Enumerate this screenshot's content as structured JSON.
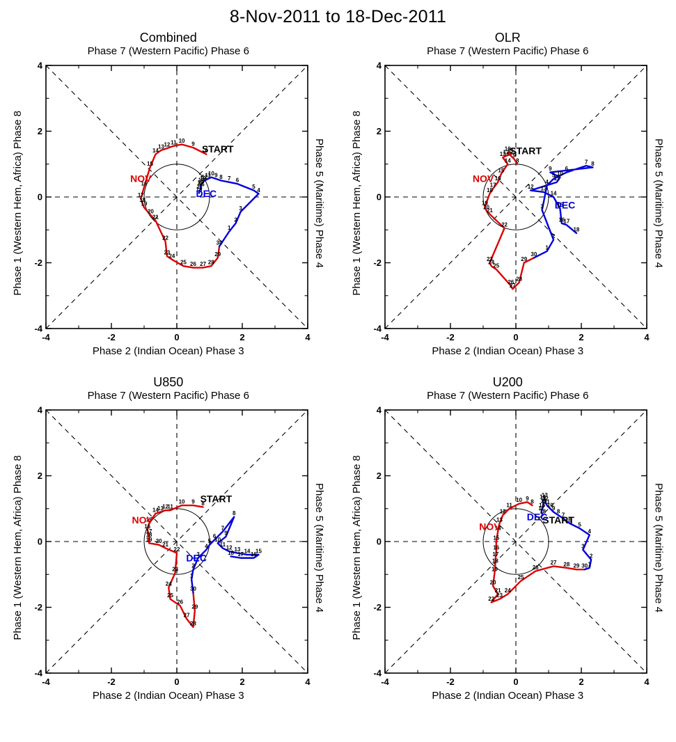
{
  "page_title": "8-Nov-2011 to 18-Dec-2011",
  "axis": {
    "min": -4,
    "max": 4,
    "ticks": [
      -4,
      -2,
      0,
      2,
      4
    ],
    "minor_ticks": [
      -3,
      -1,
      1,
      3
    ],
    "top_label": "Phase 7 (Western Pacific) Phase 6",
    "bottom_label": "Phase 2 (Indian Ocean) Phase 3",
    "left_label": "Phase 1 (Western Hem, Africa) Phase 8",
    "right_label": "Phase 5 (Maritime) Phase 4",
    "unit_circle_radius": 1
  },
  "colors": {
    "nov_line": "#dd0000",
    "dec_line": "#0000dd",
    "day_labels": "#000000",
    "frame": "#000000"
  },
  "chart_data": [
    {
      "type": "line",
      "title": "Combined",
      "xlim": [
        -4,
        4
      ],
      "ylim": [
        -4,
        4
      ],
      "series": [
        {
          "name": "NOV",
          "color": "#dd0000",
          "points": [
            [
              8,
              0.9,
              1.3
            ],
            [
              9,
              0.5,
              1.5
            ],
            [
              10,
              0.15,
              1.6
            ],
            [
              11,
              -0.1,
              1.55
            ],
            [
              12,
              -0.3,
              1.48
            ],
            [
              13,
              -0.48,
              1.42
            ],
            [
              14,
              -0.65,
              1.3
            ],
            [
              15,
              -0.82,
              0.9
            ],
            [
              16,
              -1.0,
              0.3
            ],
            [
              17,
              -1.1,
              -0.05
            ],
            [
              18,
              -1.05,
              -0.2
            ],
            [
              19,
              -1.0,
              -0.32
            ],
            [
              20,
              -0.8,
              -0.55
            ],
            [
              21,
              -0.65,
              -0.72
            ],
            [
              22,
              -0.35,
              -1.35
            ],
            [
              23,
              -0.3,
              -1.8
            ],
            [
              24,
              -0.15,
              -1.9
            ],
            [
              25,
              0.2,
              -2.1
            ],
            [
              26,
              0.5,
              -2.15
            ],
            [
              27,
              0.8,
              -2.15
            ],
            [
              28,
              1.05,
              -2.1
            ],
            [
              29,
              1.25,
              -1.85
            ],
            [
              30,
              1.3,
              -1.5
            ]
          ]
        },
        {
          "name": "DEC",
          "color": "#0000dd",
          "connect_from_previous": true,
          "points": [
            [
              1,
              1.6,
              -1.05
            ],
            [
              2,
              1.8,
              -0.8
            ],
            [
              3,
              1.95,
              -0.45
            ],
            [
              4,
              2.5,
              0.1
            ],
            [
              5,
              2.35,
              0.2
            ],
            [
              6,
              1.85,
              0.4
            ],
            [
              7,
              1.6,
              0.45
            ],
            [
              8,
              1.35,
              0.5
            ],
            [
              9,
              1.2,
              0.55
            ],
            [
              10,
              1.05,
              0.6
            ],
            [
              11,
              0.95,
              0.55
            ],
            [
              12,
              0.85,
              0.5
            ],
            [
              13,
              0.8,
              0.45
            ],
            [
              14,
              0.75,
              0.4
            ],
            [
              15,
              0.72,
              0.33
            ],
            [
              16,
              0.75,
              0.27
            ],
            [
              17,
              0.7,
              0.2
            ],
            [
              18,
              0.68,
              0.12
            ]
          ]
        }
      ],
      "annotations": [
        {
          "text": "START",
          "x": 1.25,
          "y": 1.35,
          "color": "#000000"
        },
        {
          "text": "NOV",
          "x": -1.1,
          "y": 0.45,
          "color": "#dd0000"
        },
        {
          "text": "DEC",
          "x": 0.9,
          "y": 0.0,
          "color": "#0000dd"
        }
      ]
    },
    {
      "type": "line",
      "title": "OLR",
      "xlim": [
        -4,
        4
      ],
      "ylim": [
        -4,
        4
      ],
      "series": [
        {
          "name": "NOV",
          "color": "#dd0000",
          "points": [
            [
              8,
              0.05,
              1.0
            ],
            [
              9,
              -0.05,
              1.15
            ],
            [
              10,
              -0.25,
              1.35
            ],
            [
              11,
              -0.15,
              1.3
            ],
            [
              12,
              -0.3,
              1.25
            ],
            [
              13,
              -0.4,
              1.2
            ],
            [
              14,
              -0.25,
              1.0
            ],
            [
              15,
              -0.45,
              0.7
            ],
            [
              16,
              -0.55,
              0.45
            ],
            [
              17,
              -0.7,
              0.25
            ],
            [
              18,
              -0.8,
              0.1
            ],
            [
              19,
              -0.95,
              -0.3
            ],
            [
              20,
              -0.9,
              -0.42
            ],
            [
              21,
              -0.8,
              -0.52
            ],
            [
              22,
              -0.35,
              -0.95
            ],
            [
              23,
              -0.8,
              -2.0
            ],
            [
              24,
              -0.75,
              -2.1
            ],
            [
              25,
              -0.6,
              -2.2
            ],
            [
              26,
              -0.15,
              -2.7
            ],
            [
              27,
              -0.1,
              -2.8
            ],
            [
              28,
              0.1,
              -2.6
            ],
            [
              29,
              0.25,
              -2.0
            ],
            [
              30,
              0.55,
              -1.85
            ]
          ]
        },
        {
          "name": "DEC",
          "color": "#0000dd",
          "connect_from_previous": true,
          "points": [
            [
              1,
              0.95,
              -1.65
            ],
            [
              2,
              1.15,
              -1.3
            ],
            [
              3,
              0.8,
              -0.4
            ],
            [
              4,
              0.95,
              0.35
            ],
            [
              5,
              1.15,
              0.55
            ],
            [
              6,
              1.55,
              0.75
            ],
            [
              7,
              2.15,
              0.95
            ],
            [
              8,
              2.35,
              0.9
            ],
            [
              9,
              1.05,
              0.75
            ],
            [
              10,
              1.35,
              0.6
            ],
            [
              11,
              1.25,
              0.45
            ],
            [
              12,
              0.45,
              0.2
            ],
            [
              13,
              0.85,
              0.15
            ],
            [
              14,
              1.15,
              0.0
            ],
            [
              15,
              1.35,
              -0.35
            ],
            [
              16,
              1.4,
              -0.8
            ],
            [
              17,
              1.55,
              -0.85
            ],
            [
              18,
              1.85,
              -1.1
            ]
          ]
        }
      ],
      "annotations": [
        {
          "text": "START",
          "x": 0.3,
          "y": 1.3,
          "color": "#000000"
        },
        {
          "text": "NOV",
          "x": -1.0,
          "y": 0.45,
          "color": "#dd0000"
        },
        {
          "text": "DEC",
          "x": 1.5,
          "y": -0.35,
          "color": "#0000dd"
        }
      ]
    },
    {
      "type": "line",
      "title": "U850",
      "xlim": [
        -4,
        4
      ],
      "ylim": [
        -4,
        4
      ],
      "series": [
        {
          "name": "NOV",
          "color": "#dd0000",
          "points": [
            [
              8,
              0.8,
              1.05
            ],
            [
              9,
              0.5,
              1.1
            ],
            [
              10,
              0.15,
              1.1
            ],
            [
              11,
              -0.2,
              0.95
            ],
            [
              12,
              -0.35,
              0.95
            ],
            [
              13,
              -0.5,
              0.9
            ],
            [
              14,
              -0.65,
              0.85
            ],
            [
              15,
              -0.85,
              0.55
            ],
            [
              16,
              -0.9,
              0.35
            ],
            [
              17,
              -0.85,
              0.2
            ],
            [
              18,
              -0.85,
              0.1
            ],
            [
              19,
              -0.85,
              -0.05
            ],
            [
              20,
              -0.55,
              -0.1
            ],
            [
              21,
              -0.35,
              -0.2
            ],
            [
              22,
              0.0,
              -0.35
            ],
            [
              23,
              -0.05,
              -0.95
            ],
            [
              24,
              -0.25,
              -1.4
            ],
            [
              25,
              -0.2,
              -1.75
            ],
            [
              26,
              0.1,
              -1.95
            ],
            [
              27,
              0.3,
              -2.35
            ],
            [
              28,
              0.5,
              -2.6
            ],
            [
              29,
              0.55,
              -2.1
            ],
            [
              30,
              0.5,
              -1.55
            ]
          ]
        },
        {
          "name": "DEC",
          "color": "#0000dd",
          "connect_from_previous": true,
          "points": [
            [
              1,
              0.45,
              -1.15
            ],
            [
              2,
              0.5,
              -0.85
            ],
            [
              3,
              0.65,
              -0.5
            ],
            [
              4,
              0.9,
              -0.25
            ],
            [
              5,
              1.0,
              -0.1
            ],
            [
              6,
              1.15,
              0.05
            ],
            [
              7,
              1.4,
              0.3
            ],
            [
              8,
              1.75,
              0.75
            ],
            [
              9,
              1.5,
              0.15
            ],
            [
              10,
              1.25,
              -0.05
            ],
            [
              11,
              1.4,
              -0.2
            ],
            [
              12,
              1.6,
              -0.3
            ],
            [
              13,
              1.85,
              -0.35
            ],
            [
              14,
              2.15,
              -0.4
            ],
            [
              15,
              2.5,
              -0.4
            ],
            [
              16,
              2.35,
              -0.5
            ],
            [
              17,
              1.95,
              -0.5
            ],
            [
              18,
              1.65,
              -0.45
            ]
          ]
        }
      ],
      "annotations": [
        {
          "text": "START",
          "x": 1.2,
          "y": 1.2,
          "color": "#000000"
        },
        {
          "text": "NOV",
          "x": -1.05,
          "y": 0.55,
          "color": "#dd0000"
        },
        {
          "text": "DEC",
          "x": 0.6,
          "y": -0.6,
          "color": "#0000dd"
        }
      ]
    },
    {
      "type": "line",
      "title": "U200",
      "xlim": [
        -4,
        4
      ],
      "ylim": [
        -4,
        4
      ],
      "series": [
        {
          "name": "NOV",
          "color": "#dd0000",
          "points": [
            [
              8,
              0.5,
              1.1
            ],
            [
              9,
              0.35,
              1.2
            ],
            [
              10,
              0.1,
              1.15
            ],
            [
              11,
              -0.2,
              1.0
            ],
            [
              12,
              -0.4,
              0.8
            ],
            [
              13,
              -0.5,
              0.55
            ],
            [
              14,
              -0.55,
              0.3
            ],
            [
              15,
              -0.6,
              0.0
            ],
            [
              16,
              -0.6,
              -0.3
            ],
            [
              17,
              -0.62,
              -0.5
            ],
            [
              18,
              -0.63,
              -0.7
            ],
            [
              19,
              -0.65,
              -0.95
            ],
            [
              20,
              -0.7,
              -1.35
            ],
            [
              21,
              -0.55,
              -1.6
            ],
            [
              22,
              -0.75,
              -1.85
            ],
            [
              23,
              -0.5,
              -1.75
            ],
            [
              24,
              -0.25,
              -1.6
            ],
            [
              25,
              0.15,
              -1.2
            ],
            [
              26,
              0.6,
              -0.9
            ],
            [
              27,
              1.15,
              -0.75
            ],
            [
              28,
              1.55,
              -0.8
            ],
            [
              29,
              1.85,
              -0.85
            ],
            [
              30,
              2.1,
              -0.85
            ]
          ]
        },
        {
          "name": "DEC",
          "color": "#0000dd",
          "connect_from_previous": true,
          "points": [
            [
              1,
              2.25,
              -0.8
            ],
            [
              2,
              2.3,
              -0.55
            ],
            [
              3,
              2.05,
              -0.25
            ],
            [
              4,
              2.25,
              0.2
            ],
            [
              5,
              1.95,
              0.4
            ],
            [
              6,
              1.65,
              0.55
            ],
            [
              7,
              1.45,
              0.7
            ],
            [
              8,
              1.3,
              0.8
            ],
            [
              9,
              1.15,
              0.9
            ],
            [
              10,
              1.05,
              1.0
            ],
            [
              11,
              0.95,
              1.1
            ],
            [
              12,
              0.9,
              1.2
            ],
            [
              13,
              0.88,
              1.3
            ],
            [
              14,
              0.82,
              1.25
            ],
            [
              15,
              0.85,
              1.12
            ],
            [
              16,
              0.8,
              1.0
            ],
            [
              17,
              0.78,
              0.9
            ],
            [
              18,
              0.82,
              0.8
            ]
          ]
        }
      ],
      "annotations": [
        {
          "text": "START",
          "x": 1.3,
          "y": 0.55,
          "color": "#000000"
        },
        {
          "text": "NOV",
          "x": -0.8,
          "y": 0.35,
          "color": "#dd0000"
        },
        {
          "text": "DEC",
          "x": 0.65,
          "y": 0.65,
          "color": "#0000dd"
        }
      ]
    }
  ]
}
